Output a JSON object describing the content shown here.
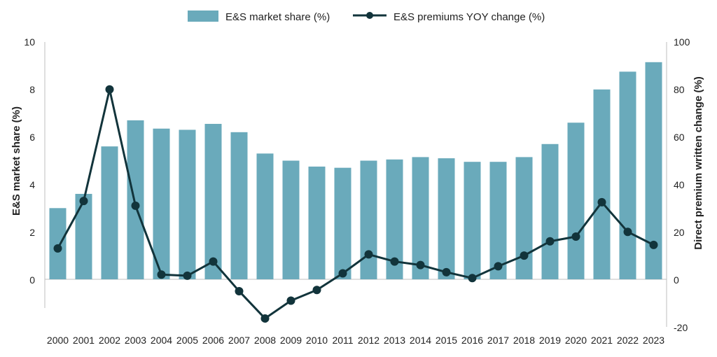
{
  "chart_data": {
    "type": "bar+line",
    "categories": [
      "2000",
      "2001",
      "2002",
      "2003",
      "2004",
      "2005",
      "2006",
      "2007",
      "2008",
      "2009",
      "2010",
      "2011",
      "2012",
      "2013",
      "2014",
      "2015",
      "2016",
      "2017",
      "2018",
      "2019",
      "2020",
      "2021",
      "2022",
      "2023"
    ],
    "series": [
      {
        "name": "E&S market share (%)",
        "type": "bar",
        "axis": "left",
        "color": "#6aaabb",
        "values": [
          3.0,
          3.6,
          5.6,
          6.7,
          6.35,
          6.3,
          6.55,
          6.2,
          5.3,
          5.0,
          4.75,
          4.7,
          5.0,
          5.05,
          5.15,
          5.1,
          4.95,
          4.95,
          5.15,
          5.7,
          6.6,
          8.0,
          8.75,
          9.15
        ]
      },
      {
        "name": "E&S premiums YOY change (%)",
        "type": "line",
        "axis": "right",
        "color": "#12343b",
        "values": [
          13,
          33,
          80,
          31,
          2,
          1.5,
          7.5,
          -5,
          -16.5,
          -9,
          -4.5,
          2.5,
          10.5,
          7.5,
          6,
          3,
          0.5,
          5.5,
          10,
          16,
          18,
          32.5,
          20,
          14.5
        ]
      }
    ],
    "y_left": {
      "label": "E&S market share (%)",
      "ticks": [
        "10",
        "8",
        "6",
        "4",
        "2",
        "0"
      ],
      "range": [
        -1.333,
        10
      ]
    },
    "y_right": {
      "label": "Direct premium written change (%)",
      "ticks": [
        "100",
        "80",
        "60",
        "40",
        "20",
        "0",
        "-20"
      ],
      "range": [
        -20,
        100
      ]
    },
    "legend": {
      "position": "top-center"
    }
  }
}
